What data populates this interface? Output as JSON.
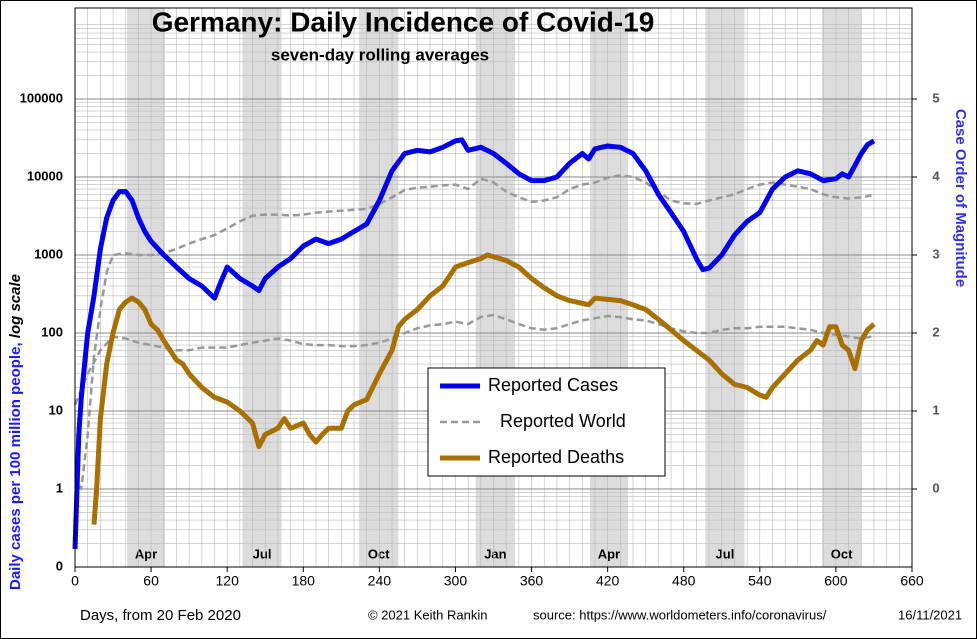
{
  "chart_data": {
    "type": "line",
    "title": "Germany: Daily Incidence of Covid-19",
    "subtitle": "seven-day rolling averages",
    "ylabel": "Daily cases per 100 million people,",
    "ylabel_note": "log scale",
    "y2label": "Case Order of Magnitude",
    "xlabel": "Days, from 20 Feb 2020",
    "credit": "© 2021  Keith Rankin",
    "source": "source:  https://www.worldometers.info/coronavirus/",
    "date": "16/11/2021",
    "log_scale": true,
    "grid": true,
    "xlim": [
      0,
      660
    ],
    "xticks": [
      0,
      60,
      120,
      180,
      240,
      300,
      360,
      420,
      480,
      540,
      600,
      660
    ],
    "ylim": [
      0.1,
      1000000
    ],
    "yticks": [
      {
        "value": 0.1,
        "label": "0"
      },
      1,
      10,
      100,
      1000,
      10000,
      100000
    ],
    "y2lim": [
      -1,
      6
    ],
    "y2ticks": [
      0,
      1,
      2,
      3,
      4,
      5
    ],
    "shaded_months": [
      {
        "label": "Apr",
        "start": 41,
        "end": 71
      },
      {
        "label": "Jul",
        "start": 132,
        "end": 163
      },
      {
        "label": "Oct",
        "start": 224,
        "end": 255
      },
      {
        "label": "Jan",
        "start": 316,
        "end": 347
      },
      {
        "label": "Apr",
        "start": 406,
        "end": 436
      },
      {
        "label": "Jul",
        "start": 497,
        "end": 528
      },
      {
        "label": "Oct",
        "start": 589,
        "end": 620
      }
    ],
    "series": [
      {
        "name": "Reported Cases",
        "color": "#0000ee",
        "width": 5,
        "dashed": false,
        "x": [
          0,
          3,
          5,
          10,
          15,
          20,
          25,
          30,
          35,
          40,
          45,
          50,
          55,
          60,
          70,
          80,
          90,
          100,
          110,
          115,
          120,
          130,
          140,
          145,
          150,
          160,
          170,
          180,
          190,
          200,
          210,
          220,
          230,
          240,
          250,
          260,
          270,
          280,
          290,
          300,
          305,
          310,
          320,
          330,
          340,
          350,
          360,
          370,
          380,
          390,
          400,
          405,
          410,
          420,
          430,
          440,
          450,
          460,
          470,
          480,
          490,
          495,
          500,
          510,
          520,
          530,
          540,
          550,
          560,
          570,
          580,
          590,
          600,
          605,
          610,
          615,
          620,
          625,
          630
        ],
        "values": [
          0.17,
          5,
          15,
          100,
          300,
          1200,
          3000,
          5000,
          6500,
          6500,
          5000,
          3000,
          2000,
          1500,
          1000,
          700,
          500,
          400,
          280,
          450,
          700,
          500,
          400,
          350,
          500,
          700,
          900,
          1300,
          1600,
          1400,
          1600,
          2000,
          2500,
          5000,
          12000,
          20000,
          22000,
          21000,
          24000,
          29000,
          30000,
          22000,
          24000,
          20000,
          15000,
          11000,
          9000,
          9000,
          10000,
          15000,
          20000,
          17000,
          23000,
          25000,
          24000,
          20000,
          12000,
          6000,
          3500,
          2000,
          900,
          650,
          680,
          1000,
          1800,
          2700,
          3500,
          7000,
          10000,
          12000,
          11000,
          9000,
          9500,
          11000,
          10000,
          14000,
          20000,
          26000,
          29000
        ]
      },
      {
        "name": "Reported World",
        "color": "#999999",
        "width": 2.5,
        "dashed": true,
        "x": [
          0,
          5,
          10,
          15,
          20,
          25,
          30,
          40,
          50,
          60,
          70,
          80,
          90,
          100,
          110,
          120,
          130,
          140,
          150,
          160,
          170,
          180,
          190,
          200,
          210,
          220,
          230,
          240,
          250,
          260,
          270,
          280,
          290,
          300,
          310,
          320,
          330,
          340,
          350,
          360,
          370,
          380,
          390,
          400,
          410,
          420,
          430,
          440,
          450,
          460,
          470,
          480,
          490,
          500,
          510,
          520,
          530,
          540,
          550,
          560,
          570,
          580,
          590,
          600,
          610,
          620,
          628
        ],
        "values": [
          1.5,
          1,
          5,
          50,
          200,
          600,
          1000,
          1050,
          1000,
          1000,
          1050,
          1200,
          1400,
          1600,
          1800,
          2200,
          2700,
          3200,
          3300,
          3300,
          3200,
          3300,
          3500,
          3600,
          3700,
          3800,
          3900,
          4500,
          5500,
          6800,
          7300,
          7500,
          7800,
          8000,
          7000,
          9500,
          8500,
          6500,
          5500,
          4800,
          5000,
          5500,
          7000,
          8000,
          8500,
          9800,
          10500,
          10000,
          8500,
          6500,
          5000,
          4600,
          4500,
          5000,
          5500,
          6000,
          7000,
          8000,
          8500,
          8000,
          7500,
          7000,
          6000,
          5500,
          5300,
          5500,
          5800
        ]
      },
      {
        "color": "#999999",
        "width": 2.5,
        "dashed": true,
        "x": [
          0,
          10,
          20,
          30,
          40,
          50,
          60,
          70,
          80,
          90,
          100,
          110,
          120,
          130,
          140,
          150,
          160,
          170,
          180,
          190,
          200,
          210,
          220,
          230,
          240,
          250,
          260,
          270,
          280,
          290,
          300,
          310,
          320,
          330,
          340,
          350,
          360,
          370,
          380,
          390,
          400,
          410,
          420,
          430,
          440,
          450,
          460,
          470,
          480,
          490,
          500,
          510,
          520,
          530,
          540,
          550,
          560,
          570,
          580,
          590,
          600,
          610,
          620,
          628
        ],
        "values": [
          12,
          30,
          60,
          90,
          85,
          75,
          70,
          65,
          60,
          60,
          65,
          65,
          65,
          70,
          75,
          80,
          85,
          80,
          72,
          70,
          70,
          68,
          68,
          70,
          75,
          85,
          100,
          115,
          125,
          130,
          140,
          130,
          160,
          170,
          150,
          130,
          115,
          110,
          115,
          130,
          145,
          155,
          165,
          160,
          150,
          145,
          130,
          115,
          105,
          100,
          100,
          110,
          115,
          115,
          120,
          120,
          120,
          115,
          110,
          100,
          95,
          90,
          85,
          90
        ]
      },
      {
        "name": "Reported Deaths",
        "color": "#a87000",
        "width": 5,
        "dashed": false,
        "x": [
          15,
          17,
          20,
          25,
          30,
          35,
          40,
          45,
          50,
          55,
          60,
          65,
          70,
          75,
          80,
          85,
          90,
          100,
          110,
          120,
          130,
          140,
          145,
          150,
          160,
          165,
          170,
          180,
          185,
          190,
          195,
          200,
          210,
          215,
          220,
          230,
          240,
          250,
          255,
          260,
          270,
          280,
          290,
          300,
          305,
          310,
          320,
          325,
          330,
          340,
          350,
          360,
          370,
          380,
          390,
          400,
          405,
          410,
          420,
          430,
          440,
          450,
          460,
          470,
          480,
          490,
          500,
          510,
          520,
          530,
          540,
          545,
          550,
          560,
          570,
          580,
          585,
          590,
          595,
          600,
          605,
          610,
          615,
          620,
          625,
          630
        ],
        "values": [
          0.35,
          1,
          8,
          40,
          100,
          200,
          250,
          280,
          250,
          200,
          130,
          110,
          80,
          60,
          45,
          40,
          30,
          20,
          15,
          13,
          10,
          7,
          3.5,
          5,
          6,
          8,
          6,
          7,
          5,
          4,
          5,
          6,
          6,
          10,
          12,
          14,
          30,
          60,
          120,
          150,
          200,
          300,
          400,
          700,
          750,
          800,
          900,
          1000,
          950,
          850,
          700,
          500,
          380,
          300,
          260,
          240,
          230,
          280,
          270,
          260,
          230,
          200,
          150,
          110,
          80,
          60,
          45,
          30,
          22,
          20,
          16,
          15,
          20,
          30,
          45,
          60,
          80,
          70,
          120,
          120,
          70,
          60,
          35,
          80,
          110,
          130
        ]
      }
    ]
  }
}
